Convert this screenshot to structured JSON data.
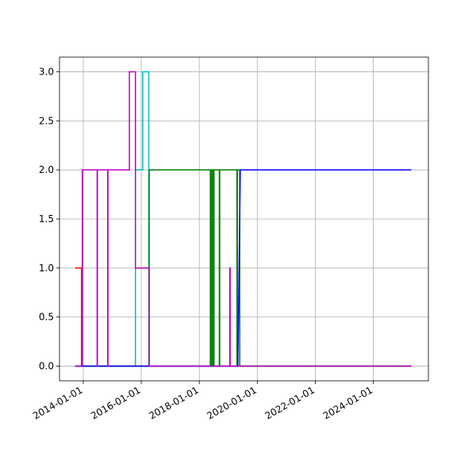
{
  "chart_data": {
    "type": "line",
    "xlim": [
      "2013-03-08",
      "2025-11-24"
    ],
    "ylim": [
      -0.15,
      3.15
    ],
    "xticks": [
      "2014-01-01",
      "2016-01-01",
      "2018-01-01",
      "2020-01-01",
      "2022-01-01",
      "2024-01-01"
    ],
    "yticks": [
      {
        "value": 0,
        "label": "0.0"
      },
      {
        "value": 0.5,
        "label": "0.5"
      },
      {
        "value": 1,
        "label": "1.0"
      },
      {
        "value": 1.5,
        "label": "1.5"
      },
      {
        "value": 2,
        "label": "2.0"
      },
      {
        "value": 2.5,
        "label": "2.5"
      },
      {
        "value": 3,
        "label": "3.0"
      }
    ],
    "grid": true,
    "series": [
      {
        "color": "#ff0000",
        "x": [
          "2013-09-20",
          "2013-12-10",
          "2013-12-10",
          "2025-04-24"
        ],
        "values": [
          1,
          1,
          0,
          0
        ]
      },
      {
        "color": "#00bfbf",
        "x": [
          "2013-09-20",
          "2015-10-20",
          "2015-10-20",
          "2016-01-20",
          "2016-01-20",
          "2016-04-05",
          "2016-04-05",
          "2025-04-24"
        ],
        "values": [
          0,
          0,
          2,
          2,
          3,
          3,
          0,
          0
        ]
      },
      {
        "color": "#008000",
        "x": [
          "2013-09-20",
          "2016-04-10",
          "2016-04-10",
          "2018-05-20",
          "2018-05-20",
          "2018-05-25",
          "2018-05-25",
          "2018-06-10",
          "2018-06-10",
          "2018-06-15",
          "2018-06-15",
          "2018-07-01",
          "2018-07-01",
          "2018-07-05",
          "2018-07-05",
          "2018-09-10",
          "2018-09-10",
          "2018-09-15",
          "2018-09-15",
          "2019-04-20",
          "2019-04-20",
          "2019-04-25",
          "2019-04-25",
          "2019-05-25",
          "2019-05-25",
          "2025-04-24"
        ],
        "values": [
          0,
          0,
          2,
          2,
          0,
          0,
          2,
          2,
          0,
          0,
          2,
          2,
          0,
          0,
          2,
          2,
          0,
          0,
          2,
          2,
          0,
          0,
          2,
          2,
          0,
          0
        ]
      },
      {
        "color": "#0000ff",
        "x": [
          "2013-09-20",
          "2019-05-01",
          "2019-06-01",
          "2025-04-24"
        ],
        "values": [
          0,
          0,
          2,
          2
        ]
      },
      {
        "color": "#bf00bf",
        "x": [
          "2013-09-20",
          "2013-12-20",
          "2013-12-20",
          "2014-06-25",
          "2014-06-25",
          "2014-06-28",
          "2014-06-28",
          "2014-11-05",
          "2014-11-05",
          "2014-11-08",
          "2014-11-08",
          "2015-08-05",
          "2015-08-05",
          "2015-10-20",
          "2015-10-20",
          "2016-04-10",
          "2016-04-10",
          "2019-01-20",
          "2019-01-20",
          "2019-01-25",
          "2019-01-25",
          "2025-04-24"
        ],
        "values": [
          0,
          0,
          2,
          2,
          0,
          0,
          2,
          2,
          0,
          0,
          2,
          2,
          3,
          3,
          1,
          1,
          0,
          0,
          1,
          1,
          0,
          0
        ]
      }
    ]
  }
}
